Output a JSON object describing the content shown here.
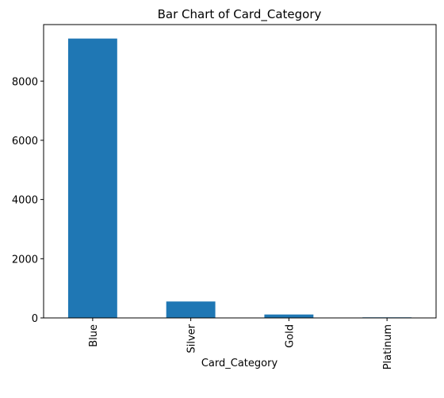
{
  "chart_data": {
    "type": "bar",
    "title": "Bar Chart of Card_Category",
    "xlabel": "Card_Category",
    "ylabel": "",
    "categories": [
      "Blue",
      "Silver",
      "Gold",
      "Platinum"
    ],
    "values": [
      9436,
      555,
      116,
      20
    ],
    "ylim": [
      0,
      9908
    ],
    "yticks": [
      0,
      2000,
      4000,
      6000,
      8000
    ],
    "ytick_labels": [
      "0",
      "2000",
      "4000",
      "6000",
      "8000"
    ],
    "bar_color": "#1f77b4",
    "grid": false,
    "legend": "none",
    "xtick_rotation": "vertical"
  }
}
